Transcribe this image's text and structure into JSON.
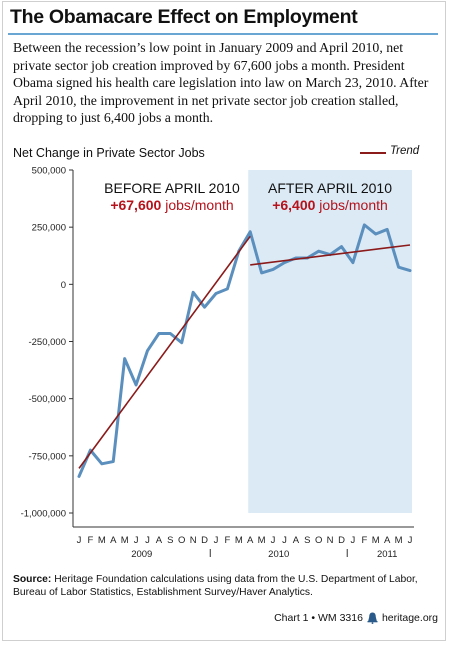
{
  "header": {
    "title": "The Obamacare Effect on Employment",
    "description": "Between the recession’s low point in January 2009 and April 2010, net private sector job creation improved by 67,600 jobs a month. President Obama signed his health care legislation into law on March 23, 2010. After April 2010, the improvement in net private sector job creation stalled, dropping to just 6,400 jobs a month."
  },
  "chart_data": {
    "type": "line",
    "subtitle": "Net Change in Private Sector Jobs",
    "legend": {
      "label": "Trend",
      "color": "#8b1a1a",
      "placement": "top-right"
    },
    "ylim": [
      -1000000,
      500000
    ],
    "yticks": [
      "500,000",
      "250,000",
      "0",
      "-250,000",
      "-500,000",
      "-750,000",
      "-1,000,000"
    ],
    "month_labels": [
      "J",
      "F",
      "M",
      "A",
      "M",
      "J",
      "J",
      "A",
      "S",
      "O",
      "N",
      "D",
      "J",
      "F",
      "M",
      "A",
      "M",
      "J",
      "J",
      "A",
      "S",
      "O",
      "N",
      "D",
      "J",
      "F",
      "M",
      "A",
      "M",
      "J"
    ],
    "year_labels": [
      {
        "label": "2009",
        "center_index": 5.5
      },
      {
        "label": "2010",
        "center_index": 17.5
      },
      {
        "label": "2011",
        "center_index": 27.0
      }
    ],
    "series": [
      {
        "color": "#5b8fbd",
        "values": [
          -840000,
          -725000,
          -785000,
          -775000,
          -325000,
          -440000,
          -290000,
          -215000,
          -215000,
          -255000,
          -35000,
          -100000,
          -40000,
          -20000,
          145000,
          230000,
          50000,
          65000,
          95000,
          115000,
          115000,
          145000,
          130000,
          165000,
          95000,
          260000,
          220000,
          240000,
          75000,
          60000
        ]
      }
    ],
    "trends": [
      {
        "start_index": 0,
        "end_index": 15,
        "start_value": -805000,
        "end_value": 210000
      },
      {
        "start_index": 15,
        "end_index": 29,
        "start_value": 85000,
        "end_value": 172000
      }
    ],
    "shaded_region": {
      "start_index": 15,
      "end_index": 29.6,
      "color": "#dceaf5"
    },
    "annotations": [
      {
        "line1": "BEFORE APRIL 2010",
        "line2_bold": "+67,600",
        "line2_rest": " jobs/month"
      },
      {
        "line1": "AFTER APRIL 2010",
        "line2_bold": "+6,400",
        "line2_rest": " jobs/month"
      }
    ]
  },
  "source": {
    "label": "Source:",
    "text": " Heritage Foundation calculations using data from the U.S. Department of Labor, Bureau of Labor Statistics, Establishment Survey/Haver Analytics."
  },
  "footer": {
    "chart_id": "Chart 1 • WM 3316",
    "site": "heritage.org",
    "logo": "liberty-bell-icon"
  }
}
